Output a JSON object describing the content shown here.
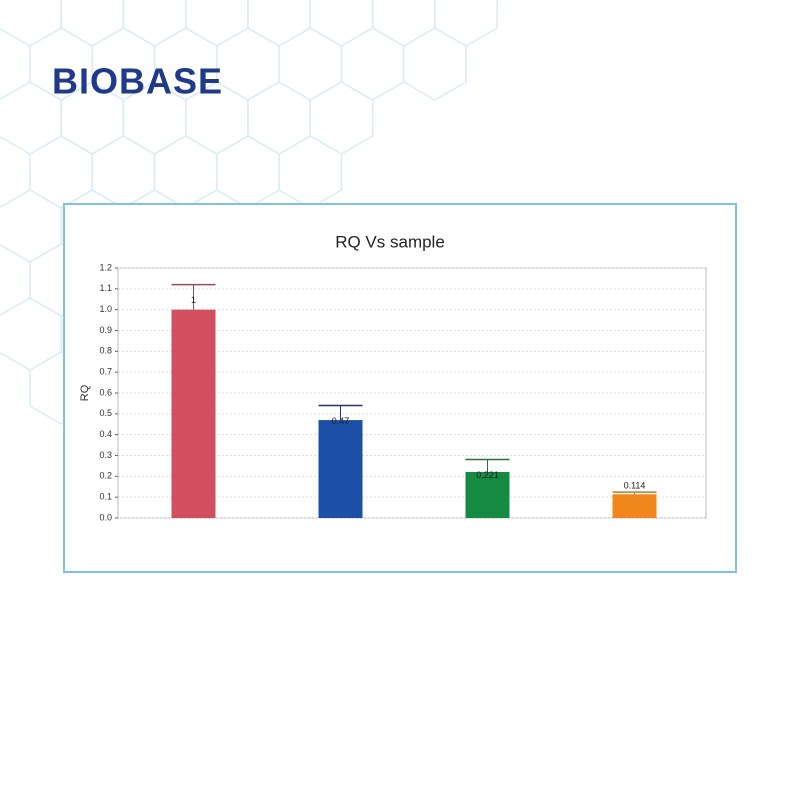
{
  "brand": "BIOBASE",
  "chart_data": {
    "type": "bar",
    "title": "RQ Vs sample",
    "y_label": "RQ",
    "values": [
      1,
      0.47,
      0.221,
      0.114
    ],
    "errors": [
      0.12,
      0.07,
      0.06,
      0.01
    ],
    "colors": [
      "#d24f60",
      "#1c4fa6",
      "#148a42",
      "#f0861c"
    ],
    "error_colors": [
      "#9b4a5a",
      "#2a2f6e",
      "#2e6e46",
      "#c07a2a"
    ],
    "ylim": [
      0,
      1.2
    ],
    "yticks": [
      {
        "value": 0,
        "label": "0.0"
      },
      0.1,
      0.2,
      0.3,
      0.4,
      0.5,
      0.6,
      0.7,
      0.8,
      0.9,
      {
        "value": 1,
        "label": "1.0"
      },
      1.1,
      1.2
    ],
    "grid": true
  }
}
